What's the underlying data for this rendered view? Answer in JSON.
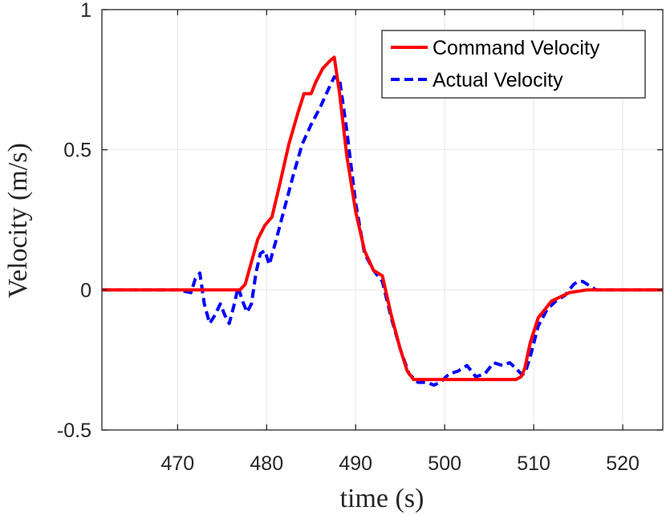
{
  "chart_data": {
    "type": "line",
    "title": "",
    "xlabel": "time (s)",
    "ylabel": "Velocity (m/s)",
    "xlim": [
      461.5,
      524.5
    ],
    "ylim": [
      -0.5,
      1
    ],
    "xticks": [
      470,
      480,
      490,
      500,
      510,
      520
    ],
    "xtick_labels": [
      "470",
      "480",
      "490",
      "500",
      "510",
      "520"
    ],
    "yticks": [
      -0.5,
      0,
      0.5,
      1
    ],
    "ytick_labels": [
      "-0.5",
      "0",
      "0.5",
      "1"
    ],
    "grid": true,
    "legend": {
      "location": "top-right",
      "entries": [
        "Command Velocity",
        "Actual Velocity"
      ]
    },
    "series": [
      {
        "name": "Command Velocity",
        "color": "#ff0000",
        "dash": "solid",
        "x": [
          461.5,
          477.0,
          477.6,
          478.3,
          479.0,
          479.8,
          480.6,
          481.5,
          482.5,
          483.5,
          484.2,
          485.0,
          485.5,
          486.3,
          487.2,
          487.6,
          488.2,
          489.0,
          490.0,
          491.0,
          492.0,
          493.0,
          494.0,
          495.0,
          495.8,
          496.5,
          500.0,
          505.0,
          508.0,
          508.6,
          509.0,
          509.6,
          510.5,
          512.0,
          514.0,
          516.0,
          519.0,
          524.5
        ],
        "values": [
          0.0,
          0.0,
          0.02,
          0.1,
          0.18,
          0.23,
          0.26,
          0.38,
          0.52,
          0.63,
          0.7,
          0.7,
          0.74,
          0.79,
          0.82,
          0.83,
          0.7,
          0.48,
          0.28,
          0.14,
          0.07,
          0.05,
          -0.09,
          -0.21,
          -0.29,
          -0.32,
          -0.32,
          -0.32,
          -0.32,
          -0.31,
          -0.28,
          -0.19,
          -0.1,
          -0.04,
          -0.01,
          0.0,
          0.0,
          0.0
        ]
      },
      {
        "name": "Actual Velocity",
        "color": "#0000ff",
        "dash": "dashed",
        "x": [
          461.5,
          470.0,
          471.5,
          472.0,
          472.5,
          473.0,
          473.6,
          474.2,
          474.8,
          475.3,
          475.8,
          476.3,
          476.8,
          477.3,
          477.8,
          478.3,
          478.8,
          479.3,
          479.8,
          480.3,
          481.0,
          482.0,
          483.0,
          484.0,
          485.0,
          486.0,
          487.0,
          487.6,
          488.2,
          489.0,
          490.0,
          491.0,
          492.0,
          493.0,
          494.0,
          495.0,
          496.0,
          497.0,
          498.0,
          498.8,
          499.5,
          500.5,
          501.5,
          502.5,
          503.5,
          504.5,
          505.5,
          506.5,
          507.3,
          508.0,
          508.6,
          509.0,
          509.6,
          510.5,
          511.5,
          512.5,
          513.5,
          514.0,
          514.5,
          515.0,
          515.5,
          516.0,
          517.0,
          518.0,
          524.5
        ],
        "values": [
          0.0,
          0.0,
          -0.01,
          0.04,
          0.06,
          -0.05,
          -0.12,
          -0.09,
          -0.05,
          -0.09,
          -0.12,
          -0.06,
          0.01,
          -0.04,
          -0.08,
          -0.05,
          0.06,
          0.13,
          0.14,
          0.09,
          0.17,
          0.29,
          0.41,
          0.52,
          0.59,
          0.65,
          0.72,
          0.76,
          0.75,
          0.57,
          0.31,
          0.13,
          0.07,
          0.03,
          -0.1,
          -0.21,
          -0.3,
          -0.33,
          -0.33,
          -0.34,
          -0.33,
          -0.3,
          -0.29,
          -0.27,
          -0.31,
          -0.3,
          -0.26,
          -0.27,
          -0.26,
          -0.28,
          -0.3,
          -0.3,
          -0.24,
          -0.13,
          -0.07,
          -0.04,
          -0.02,
          0.0,
          0.02,
          0.03,
          0.03,
          0.02,
          0.0,
          0.0,
          0.0
        ]
      }
    ]
  }
}
